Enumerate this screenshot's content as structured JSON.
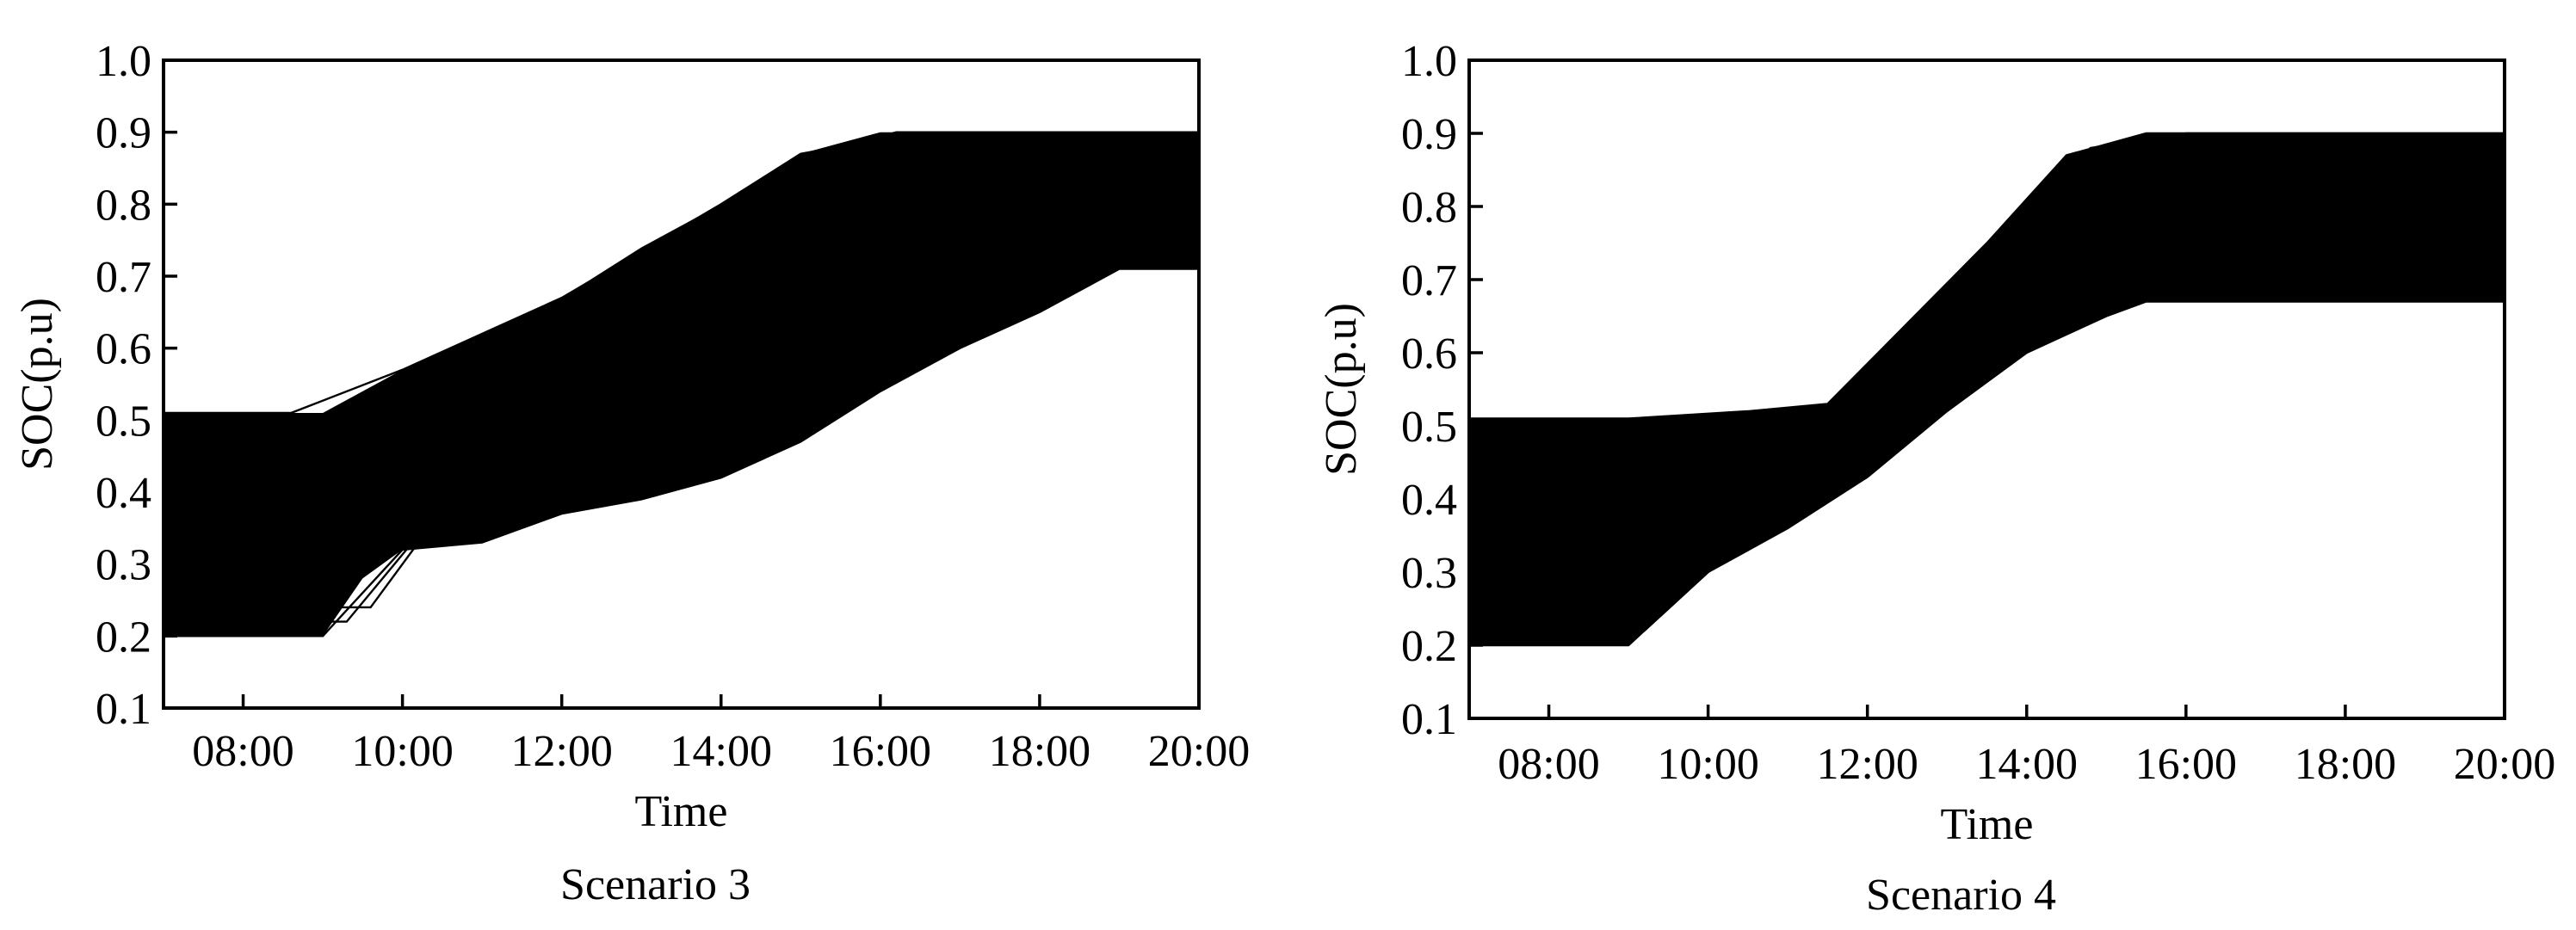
{
  "chart_data": [
    {
      "type": "line",
      "caption": "Scenario 3",
      "xlabel": "Time",
      "ylabel": "SOC(p.u)",
      "xlim": [
        "07:00",
        "20:00"
      ],
      "ylim": [
        0.1,
        1.0
      ],
      "x_ticks": [
        "08:00",
        "10:00",
        "12:00",
        "14:00",
        "16:00",
        "18:00",
        "20:00"
      ],
      "y_ticks": [
        "0.1",
        "0.2",
        "0.3",
        "0.4",
        "0.5",
        "0.6",
        "0.7",
        "0.8",
        "0.9",
        "1.0"
      ],
      "grid": false,
      "legend": "none",
      "series_color": "#000000",
      "envelope": {
        "upper": [
          [
            7.0,
            0.51
          ],
          [
            8.5,
            0.51
          ],
          [
            9.0,
            0.51
          ],
          [
            10.0,
            0.57
          ],
          [
            11.0,
            0.62
          ],
          [
            12.0,
            0.67
          ],
          [
            13.0,
            0.74
          ],
          [
            14.0,
            0.8
          ],
          [
            15.0,
            0.87
          ],
          [
            16.0,
            0.9
          ],
          [
            20.0,
            0.9
          ]
        ],
        "lower": [
          [
            7.0,
            0.2
          ],
          [
            9.0,
            0.2
          ],
          [
            9.5,
            0.28
          ],
          [
            10.0,
            0.32
          ],
          [
            11.0,
            0.33
          ],
          [
            12.0,
            0.37
          ],
          [
            13.0,
            0.39
          ],
          [
            14.0,
            0.42
          ],
          [
            15.0,
            0.47
          ],
          [
            16.0,
            0.54
          ],
          [
            17.0,
            0.6
          ],
          [
            18.0,
            0.65
          ],
          [
            19.0,
            0.71
          ],
          [
            20.0,
            0.71
          ]
        ]
      },
      "traces": [
        [
          [
            7.0,
            0.2
          ],
          [
            9.0,
            0.2
          ],
          [
            10.0,
            0.32
          ],
          [
            11.0,
            0.33
          ],
          [
            12.0,
            0.37
          ],
          [
            13.0,
            0.39
          ],
          [
            14.0,
            0.42
          ],
          [
            15.0,
            0.47
          ],
          [
            16.0,
            0.54
          ],
          [
            17.0,
            0.6
          ],
          [
            18.0,
            0.65
          ],
          [
            19.0,
            0.71
          ],
          [
            20.0,
            0.71
          ]
        ],
        [
          [
            7.0,
            0.22
          ],
          [
            9.3,
            0.22
          ],
          [
            10.2,
            0.34
          ],
          [
            12.0,
            0.38
          ],
          [
            14.0,
            0.43
          ],
          [
            16.0,
            0.56
          ],
          [
            18.0,
            0.67
          ],
          [
            18.8,
            0.73
          ],
          [
            20.0,
            0.73
          ]
        ],
        [
          [
            7.0,
            0.24
          ],
          [
            9.6,
            0.24
          ],
          [
            10.4,
            0.36
          ],
          [
            12.0,
            0.4
          ],
          [
            14.0,
            0.45
          ],
          [
            16.0,
            0.58
          ],
          [
            18.4,
            0.72
          ],
          [
            20.0,
            0.72
          ]
        ],
        [
          [
            7.0,
            0.51
          ],
          [
            8.6,
            0.51
          ],
          [
            10.0,
            0.57
          ],
          [
            12.0,
            0.67
          ],
          [
            14.0,
            0.8
          ],
          [
            15.0,
            0.87
          ],
          [
            16.0,
            0.89
          ],
          [
            20.0,
            0.89
          ]
        ],
        [
          [
            7.0,
            0.49
          ],
          [
            9.0,
            0.49
          ],
          [
            10.2,
            0.57
          ],
          [
            12.0,
            0.66
          ],
          [
            14.0,
            0.79
          ],
          [
            15.2,
            0.87
          ],
          [
            16.2,
            0.9
          ],
          [
            20.0,
            0.9
          ]
        ],
        [
          [
            7.0,
            0.47
          ],
          [
            8.8,
            0.47
          ],
          [
            10.0,
            0.54
          ],
          [
            12.0,
            0.64
          ],
          [
            14.0,
            0.77
          ],
          [
            15.3,
            0.86
          ],
          [
            16.4,
            0.9
          ],
          [
            20.0,
            0.9
          ]
        ]
      ]
    },
    {
      "type": "line",
      "caption": "Scenario 4",
      "xlabel": "Time",
      "ylabel": "SOC(p.u)",
      "xlim": [
        "07:00",
        "20:00"
      ],
      "ylim": [
        0.1,
        1.0
      ],
      "x_ticks": [
        "08:00",
        "10:00",
        "12:00",
        "14:00",
        "16:00",
        "18:00",
        "20:00"
      ],
      "y_ticks": [
        "0.1",
        "0.2",
        "0.3",
        "0.4",
        "0.5",
        "0.6",
        "0.7",
        "0.8",
        "0.9",
        "1.0"
      ],
      "grid": false,
      "legend": "none",
      "series_color": "#000000",
      "envelope": {
        "upper": [
          [
            7.0,
            0.51
          ],
          [
            9.0,
            0.51
          ],
          [
            10.5,
            0.52
          ],
          [
            11.5,
            0.53
          ],
          [
            12.5,
            0.64
          ],
          [
            13.5,
            0.75
          ],
          [
            14.5,
            0.87
          ],
          [
            15.5,
            0.9
          ],
          [
            20.0,
            0.9
          ]
        ],
        "lower": [
          [
            7.0,
            0.2
          ],
          [
            9.0,
            0.2
          ],
          [
            10.0,
            0.3
          ],
          [
            11.0,
            0.36
          ],
          [
            12.0,
            0.43
          ],
          [
            13.0,
            0.52
          ],
          [
            14.0,
            0.6
          ],
          [
            15.0,
            0.65
          ],
          [
            15.5,
            0.67
          ],
          [
            20.0,
            0.67
          ]
        ]
      },
      "traces": [
        [
          [
            7.0,
            0.2
          ],
          [
            9.0,
            0.2
          ],
          [
            10.0,
            0.3
          ],
          [
            11.0,
            0.36
          ],
          [
            12.0,
            0.43
          ],
          [
            13.0,
            0.52
          ],
          [
            14.0,
            0.6
          ],
          [
            15.0,
            0.65
          ],
          [
            15.5,
            0.67
          ],
          [
            20.0,
            0.67
          ]
        ],
        [
          [
            7.0,
            0.22
          ],
          [
            9.2,
            0.22
          ],
          [
            10.2,
            0.32
          ],
          [
            12.0,
            0.45
          ],
          [
            14.0,
            0.62
          ],
          [
            15.3,
            0.69
          ],
          [
            20.0,
            0.69
          ]
        ],
        [
          [
            7.0,
            0.24
          ],
          [
            9.4,
            0.24
          ],
          [
            10.4,
            0.34
          ],
          [
            12.0,
            0.46
          ],
          [
            14.0,
            0.64
          ],
          [
            15.6,
            0.71
          ],
          [
            20.0,
            0.71
          ]
        ],
        [
          [
            7.0,
            0.51
          ],
          [
            9.0,
            0.51
          ],
          [
            10.5,
            0.52
          ],
          [
            11.5,
            0.53
          ],
          [
            12.5,
            0.64
          ],
          [
            13.5,
            0.75
          ],
          [
            14.5,
            0.87
          ],
          [
            15.5,
            0.9
          ],
          [
            20.0,
            0.9
          ]
        ],
        [
          [
            7.0,
            0.48
          ],
          [
            9.0,
            0.48
          ],
          [
            10.5,
            0.49
          ],
          [
            11.5,
            0.5
          ],
          [
            12.5,
            0.62
          ],
          [
            13.5,
            0.74
          ],
          [
            14.8,
            0.88
          ],
          [
            16.0,
            0.9
          ],
          [
            20.0,
            0.9
          ]
        ],
        [
          [
            7.0,
            0.46
          ],
          [
            9.0,
            0.46
          ],
          [
            10.5,
            0.47
          ],
          [
            11.6,
            0.49
          ],
          [
            13.0,
            0.66
          ],
          [
            14.5,
            0.82
          ],
          [
            15.5,
            0.87
          ],
          [
            20.0,
            0.87
          ]
        ]
      ]
    }
  ]
}
